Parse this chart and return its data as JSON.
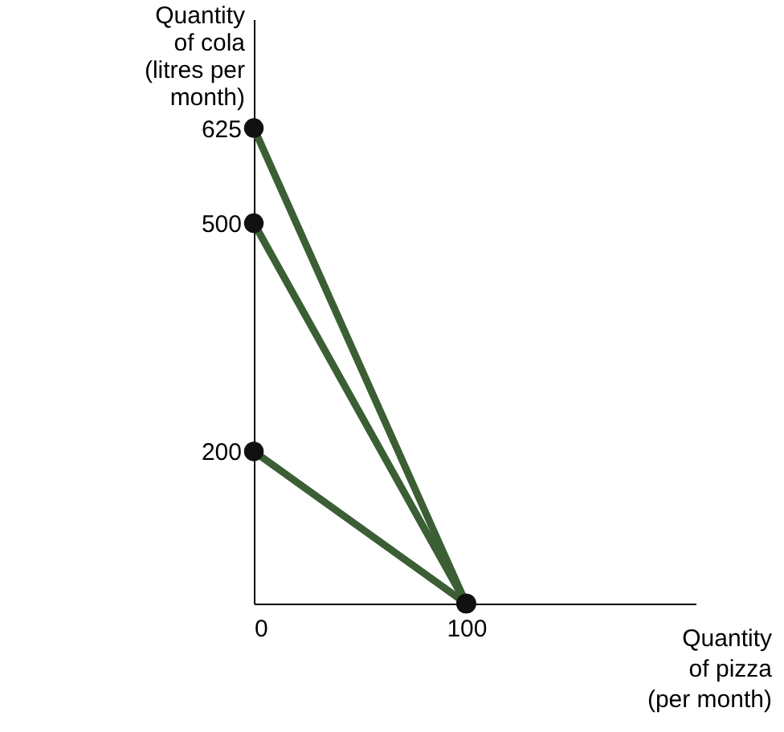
{
  "chart_data": {
    "type": "line",
    "xlabel": "Quantity\nof pizza\n(per month)",
    "ylabel": "Quantity\nof cola\n(litres per\nmonth)",
    "x": [
      0,
      100
    ],
    "series": [
      {
        "color": "#3b5e34",
        "values": [
          625,
          0
        ]
      },
      {
        "color": "#3b5e34",
        "values": [
          500,
          0
        ]
      },
      {
        "color": "#3b5e34",
        "values": [
          200,
          0
        ]
      }
    ],
    "xlim": [
      0,
      208
    ],
    "ylim": [
      0,
      768
    ],
    "xticks": [
      0,
      100
    ],
    "yticks": [
      200,
      500,
      625
    ],
    "grid": false,
    "marker": "circle",
    "line_style": "solid"
  }
}
